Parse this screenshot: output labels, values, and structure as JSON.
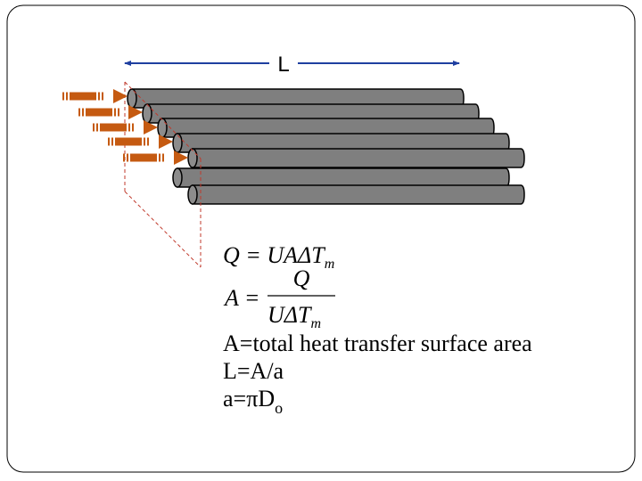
{
  "dimension_label": "L",
  "equations": {
    "heat_rate": {
      "text": "Q = UAΔT",
      "sub": "m"
    },
    "area": {
      "lhs": "A =",
      "numerator": "Q",
      "denominator": "UΔT",
      "sub": "m"
    }
  },
  "definitions": {
    "area_text": "A=total heat transfer surface area",
    "length_text": "L=A/a",
    "per_length": {
      "text": "a=πD",
      "sub": "o"
    }
  }
}
